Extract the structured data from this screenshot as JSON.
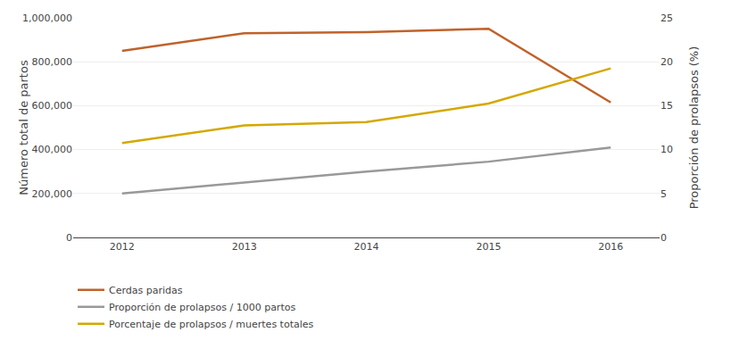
{
  "chart_data": {
    "type": "line",
    "x": [
      2012,
      2013,
      2014,
      2015,
      2016
    ],
    "xlim": [
      2011.6,
      2016.4
    ],
    "xticks": [
      2012,
      2013,
      2014,
      2015,
      2016
    ],
    "ylim": [
      0,
      1000000
    ],
    "yticks": [
      0,
      {
        "value": 200000,
        "label": "200,000"
      },
      {
        "value": 400000,
        "label": "400,000"
      },
      {
        "value": 600000,
        "label": "600,000"
      },
      {
        "value": 800000,
        "label": "800,000"
      },
      {
        "value": 1000000,
        "label": "1,000,000"
      }
    ],
    "y2lim": [
      0,
      25
    ],
    "y2ticks": [
      0,
      5,
      10,
      15,
      20,
      25
    ],
    "ylabel": "Número total de partos",
    "y2label": "Proporción de prolapsos (%)",
    "grid": true,
    "legend": "bottom",
    "series": [
      {
        "name": "Cerdas paridas",
        "color": "#C0622B",
        "values": [
          850000,
          930000,
          935000,
          950000,
          615000
        ]
      },
      {
        "name": "Proporción de prolapsos / 1000 partos",
        "color": "#999999",
        "values": [
          5.0,
          6.25,
          7.5,
          8.625,
          10.25
        ],
        "axis": "y2"
      },
      {
        "name": "Porcentaje de prolapsos / muertes totales",
        "color": "#D4A800",
        "values": [
          10.75,
          12.75,
          13.125,
          15.25,
          19.25
        ],
        "axis": "y2"
      }
    ]
  }
}
